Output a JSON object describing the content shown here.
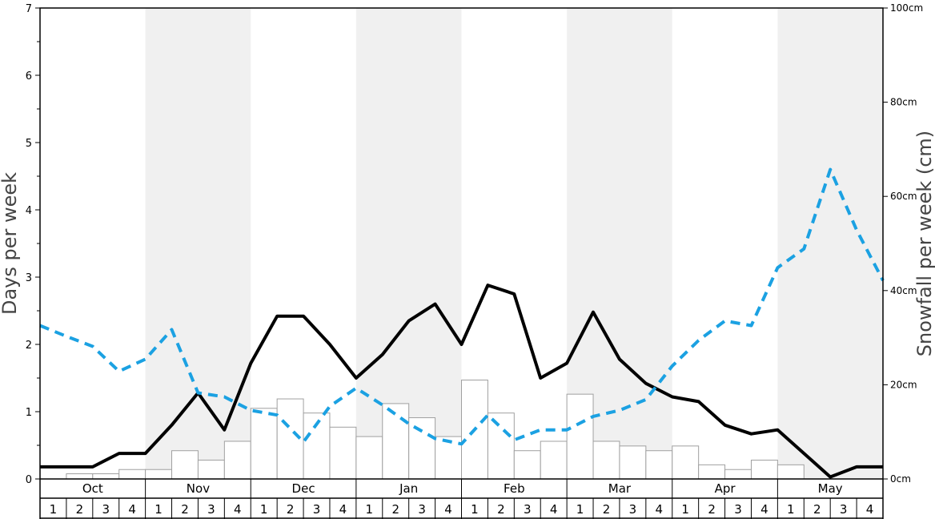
{
  "chart_data": {
    "type": "bar+line",
    "ylabel_left": "Days per week",
    "ylabel_right": "Snowfall per week (cm)",
    "ylim_left": [
      0,
      7
    ],
    "ylim_right": [
      0,
      100
    ],
    "left_ticks": [
      "0",
      "1",
      "2",
      "3",
      "4",
      "5",
      "6",
      "7"
    ],
    "right_ticks": [
      "0cm",
      "20cm",
      "40cm",
      "60cm",
      "80cm",
      "100cm"
    ],
    "months": [
      "Oct",
      "Nov",
      "Dec",
      "Jan",
      "Feb",
      "Mar",
      "Apr",
      "May"
    ],
    "weeks": [
      "1",
      "2",
      "3",
      "4"
    ],
    "shaded_months": [
      "Nov",
      "Jan",
      "Mar",
      "May"
    ],
    "shade_color": "#f0f0f0",
    "snowfall_cm": [
      0,
      1.1,
      1.1,
      2.0,
      2.0,
      6.0,
      4.0,
      8.0,
      15.0,
      17.0,
      14.0,
      11.0,
      9.0,
      16.0,
      13.0,
      9.0,
      21.0,
      14.0,
      6.0,
      8.0,
      18.0,
      8.0,
      7.0,
      6.0,
      7.0,
      3.0,
      2.0,
      4.0,
      3.0,
      0,
      0,
      0
    ],
    "series": [
      {
        "style": "solid",
        "color": "#000000",
        "axis": "left",
        "values": [
          0.18,
          0.18,
          0.18,
          0.38,
          0.38,
          0.8,
          1.28,
          0.73,
          1.72,
          2.42,
          2.42,
          2.0,
          1.5,
          1.85,
          2.35,
          2.6,
          2.0,
          2.88,
          2.75,
          1.5,
          1.72,
          2.48,
          1.78,
          1.42,
          1.22,
          1.15,
          0.8,
          0.67,
          0.73,
          0.38,
          0.03,
          0.18,
          0.18
        ]
      },
      {
        "style": "dashed",
        "color": "#1ba1e2",
        "axis": "left",
        "values": [
          2.28,
          2.12,
          1.97,
          1.6,
          1.78,
          2.22,
          1.28,
          1.22,
          1.02,
          0.95,
          0.55,
          1.08,
          1.35,
          1.1,
          0.82,
          0.6,
          0.52,
          0.95,
          0.58,
          0.73,
          0.73,
          0.93,
          1.02,
          1.18,
          1.68,
          2.06,
          2.35,
          2.28,
          3.14,
          3.42,
          4.6,
          3.7,
          2.95
        ]
      }
    ]
  }
}
